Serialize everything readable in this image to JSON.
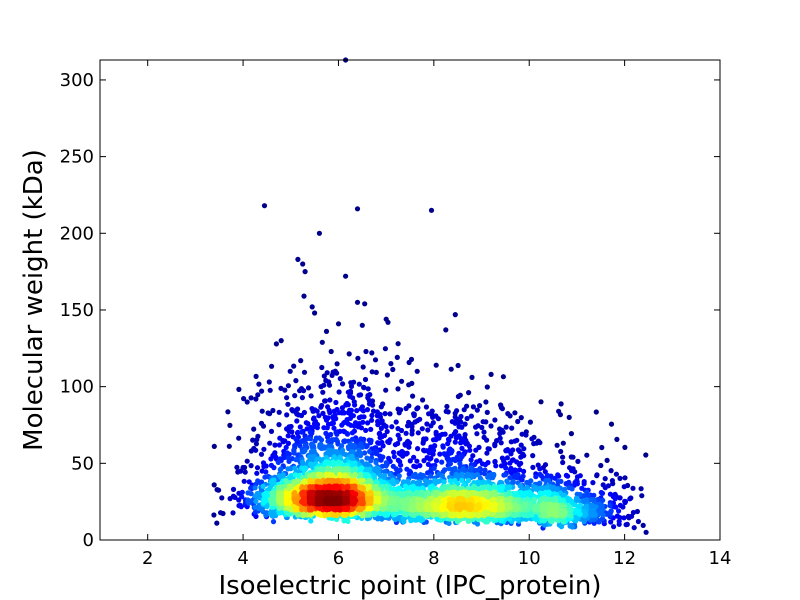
{
  "chart_data": {
    "type": "scatter",
    "xlabel": "Isoelectric point (IPC_protein)",
    "ylabel": "Molecular weight (kDa)",
    "xlim": [
      1,
      14
    ],
    "ylim": [
      0,
      313
    ],
    "xticks": [
      "2",
      "4",
      "6",
      "8",
      "10",
      "12",
      "14"
    ],
    "yticks": [
      "0",
      "50",
      "100",
      "150",
      "200",
      "250",
      "300"
    ],
    "x_tick_values": [
      2,
      4,
      6,
      8,
      10,
      12,
      14
    ],
    "y_tick_values": [
      0,
      50,
      100,
      150,
      200,
      250,
      300
    ],
    "colormap": "jet (point density)",
    "density_peaks": [
      {
        "x": 5.8,
        "y": 28,
        "level": "highest"
      },
      {
        "x": 8.6,
        "y": 22,
        "level": "medium"
      }
    ],
    "outliers": [
      {
        "x": 6.15,
        "y": 313
      },
      {
        "x": 4.45,
        "y": 218
      },
      {
        "x": 6.4,
        "y": 216
      },
      {
        "x": 7.95,
        "y": 215
      },
      {
        "x": 5.6,
        "y": 200
      },
      {
        "x": 5.15,
        "y": 183
      },
      {
        "x": 5.25,
        "y": 180
      },
      {
        "x": 5.3,
        "y": 175
      },
      {
        "x": 6.15,
        "y": 172
      },
      {
        "x": 6.4,
        "y": 155
      },
      {
        "x": 6.55,
        "y": 154
      },
      {
        "x": 5.45,
        "y": 152
      },
      {
        "x": 5.5,
        "y": 148
      },
      {
        "x": 8.45,
        "y": 147
      },
      {
        "x": 7.0,
        "y": 144
      },
      {
        "x": 6.0,
        "y": 141
      },
      {
        "x": 8.25,
        "y": 137
      },
      {
        "x": 5.75,
        "y": 136
      },
      {
        "x": 4.8,
        "y": 130
      },
      {
        "x": 7.25,
        "y": 128
      },
      {
        "x": 6.7,
        "y": 122
      },
      {
        "x": 9.2,
        "y": 108
      },
      {
        "x": 4.55,
        "y": 103
      },
      {
        "x": 7.1,
        "y": 115
      },
      {
        "x": 7.65,
        "y": 110
      },
      {
        "x": 8.05,
        "y": 114
      },
      {
        "x": 4.4,
        "y": 84
      },
      {
        "x": 9.4,
        "y": 88
      },
      {
        "x": 8.8,
        "y": 106
      },
      {
        "x": 3.8,
        "y": 33
      },
      {
        "x": 3.45,
        "y": 11
      },
      {
        "x": 12.45,
        "y": 5
      },
      {
        "x": 12.2,
        "y": 8
      },
      {
        "x": 11.55,
        "y": 36
      },
      {
        "x": 10.7,
        "y": 54
      },
      {
        "x": 10.1,
        "y": 67
      },
      {
        "x": 9.85,
        "y": 69
      }
    ],
    "grid": false
  }
}
